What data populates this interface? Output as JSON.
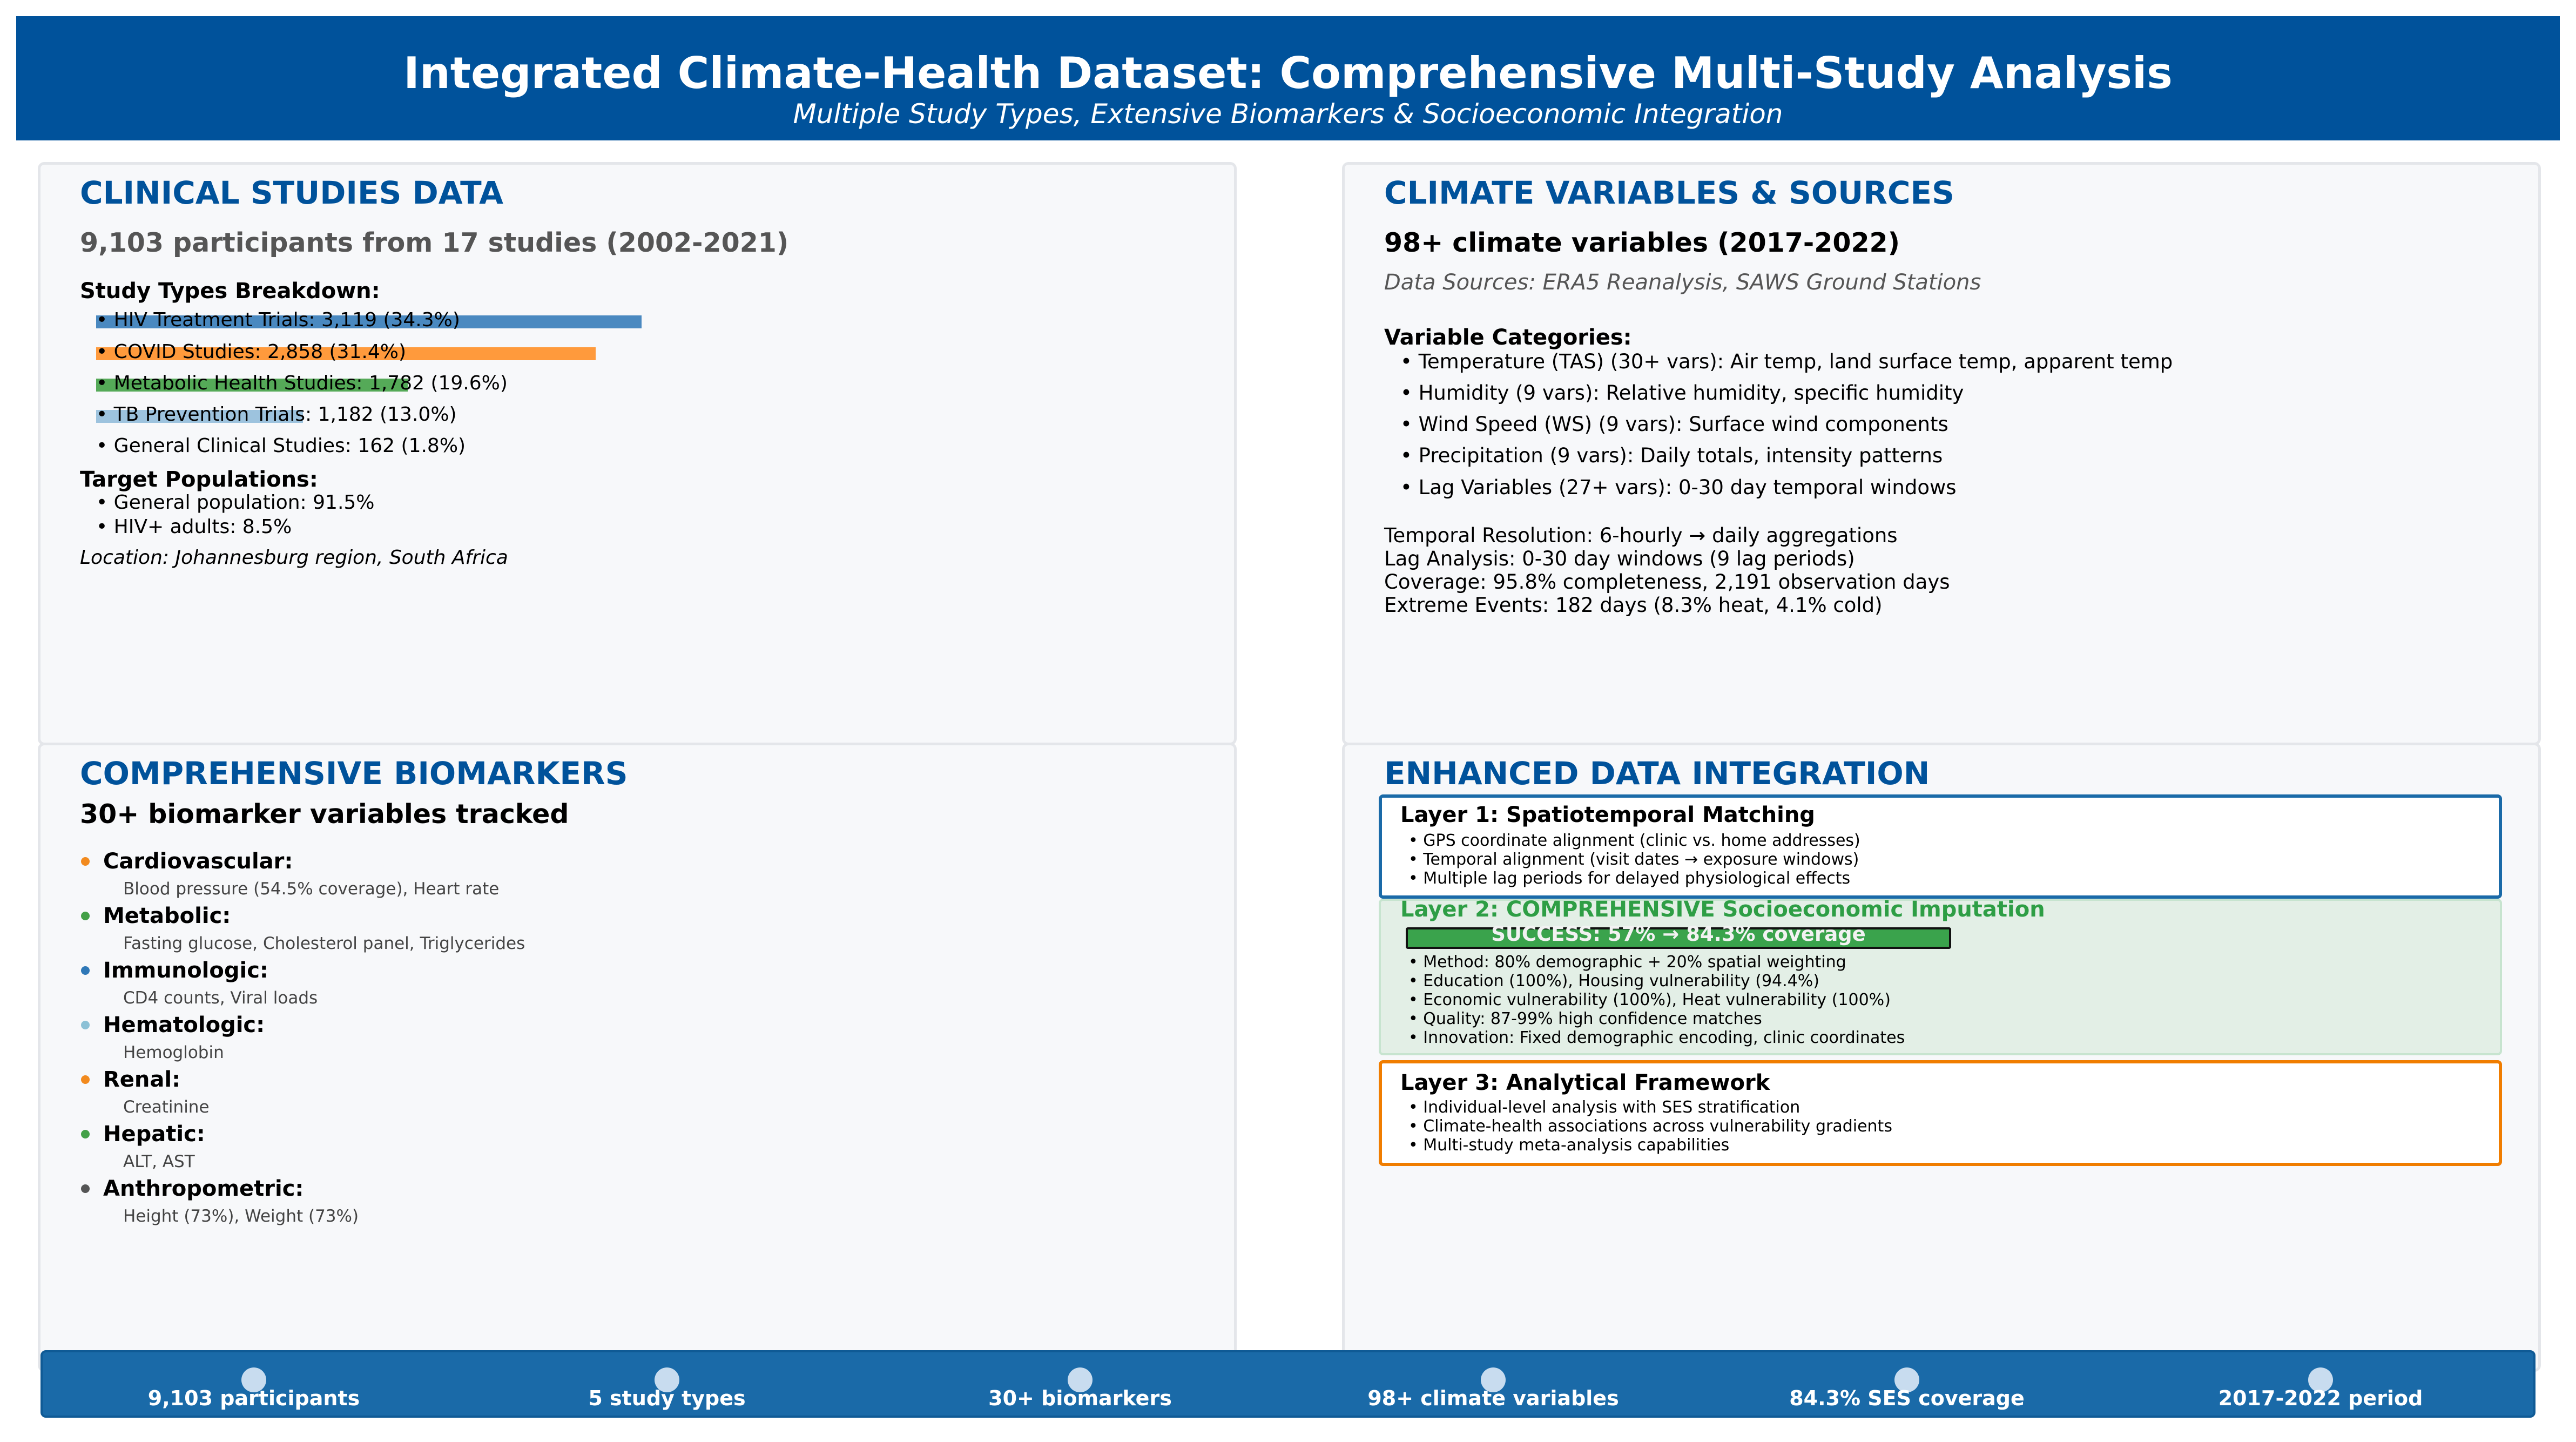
{
  "header": {
    "title": "Integrated Climate-Health Dataset: Comprehensive Multi-Study Analysis",
    "subtitle": "Multiple Study Types, Extensive Biomarkers & Socioeconomic Integration"
  },
  "clinical": {
    "title": "CLINICAL STUDIES DATA",
    "summary": "9,103 participants from 17 studies (2002-2021)",
    "breakdown_heading": "Study Types Breakdown:",
    "study_types": [
      {
        "label": "• HIV Treatment Trials: 3,119 (34.3%)",
        "share": 34.3,
        "color": "#4a89c0"
      },
      {
        "label": "• COVID Studies: 2,858 (31.4%)",
        "share": 31.4,
        "color": "#ff9a3c"
      },
      {
        "label": "• Metabolic Health Studies: 1,782 (19.6%)",
        "share": 19.6,
        "color": "#55aa58"
      },
      {
        "label": "• TB Prevention Trials: 1,182 (13.0%)",
        "share": 13.0,
        "color": "#9dc3de"
      },
      {
        "label": "• General Clinical Studies: 162 (1.8%)",
        "share": 1.8,
        "color": "#f7f8fa"
      }
    ],
    "populations_heading": "Target Populations:",
    "populations": [
      "• General population: 91.5%",
      "• HIV+ adults: 8.5%"
    ],
    "location": "Location: Johannesburg region, South Africa"
  },
  "climate": {
    "title": "CLIMATE VARIABLES & SOURCES",
    "summary": "98+ climate variables (2017-2022)",
    "sources": "Data Sources: ERA5 Reanalysis, SAWS Ground Stations",
    "categories_heading": "Variable Categories:",
    "categories": [
      "• Temperature (TAS) (30+ vars): Air temp, land surface temp, apparent temp",
      "• Humidity (9 vars): Relative humidity, specific humidity",
      "• Wind Speed (WS) (9 vars): Surface wind components",
      "• Precipitation (9 vars): Daily totals, intensity patterns",
      "• Lag Variables (27+ vars): 0-30 day temporal windows"
    ],
    "details": [
      "Temporal Resolution: 6-hourly → daily aggregations",
      "Lag Analysis: 0-30 day windows (9 lag periods)",
      "Coverage: 95.8% completeness, 2,191 observation days",
      "Extreme Events: 182 days (8.3% heat, 4.1% cold)"
    ]
  },
  "biomarkers": {
    "title": "COMPREHENSIVE BIOMARKERS",
    "summary": "30+ biomarker variables tracked",
    "groups": [
      {
        "name": "Cardiovascular:",
        "items": "Blood pressure (54.5% coverage), Heart rate",
        "color": "#f28a1e"
      },
      {
        "name": "Metabolic:",
        "items": "Fasting glucose, Cholesterol panel, Triglycerides",
        "color": "#43a047"
      },
      {
        "name": "Immunologic:",
        "items": "CD4 counts, Viral loads",
        "color": "#2f78b7"
      },
      {
        "name": "Hematologic:",
        "items": "Hemoglobin",
        "color": "#8cc1d6"
      },
      {
        "name": "Renal:",
        "items": "Creatinine",
        "color": "#f28a1e"
      },
      {
        "name": "Hepatic:",
        "items": "ALT, AST",
        "color": "#43a047"
      },
      {
        "name": "Anthropometric:",
        "items": "Height (73%), Weight (73%)",
        "color": "#555555"
      }
    ]
  },
  "integration": {
    "title": "ENHANCED DATA INTEGRATION",
    "layer1": {
      "title": "Layer 1: Spatiotemporal Matching",
      "items": [
        "• GPS coordinate alignment (clinic vs. home addresses)",
        "• Temporal alignment (visit dates → exposure windows)",
        "• Multiple lag periods for delayed physiological effects"
      ]
    },
    "layer2": {
      "title": "Layer 2: COMPREHENSIVE Socioeconomic Imputation",
      "success": "SUCCESS: 57% → 84.3% coverage",
      "items": [
        "• Method: 80% demographic + 20% spatial weighting",
        "• Education (100%), Housing vulnerability (94.4%)",
        "• Economic vulnerability (100%), Heat vulnerability (100%)",
        "• Quality: 87-99% high confidence matches",
        "• Innovation: Fixed demographic encoding, clinic coordinates"
      ]
    },
    "layer3": {
      "title": "Layer 3: Analytical Framework",
      "items": [
        "• Individual-level analysis with SES stratification",
        "• Climate-health associations across vulnerability gradients",
        "• Multi-study meta-analysis capabilities"
      ]
    }
  },
  "footer": {
    "stats": [
      "9,103 participants",
      "5 study types",
      "30+ biomarkers",
      "98+ climate variables",
      "84.3% SES coverage",
      "2017-2022 period"
    ]
  },
  "colors": {
    "brand_blue": "#00529b",
    "footer_blue": "#1a6aa8",
    "layer2_green": "#2e9e45",
    "layer3_orange": "#f07d00"
  }
}
